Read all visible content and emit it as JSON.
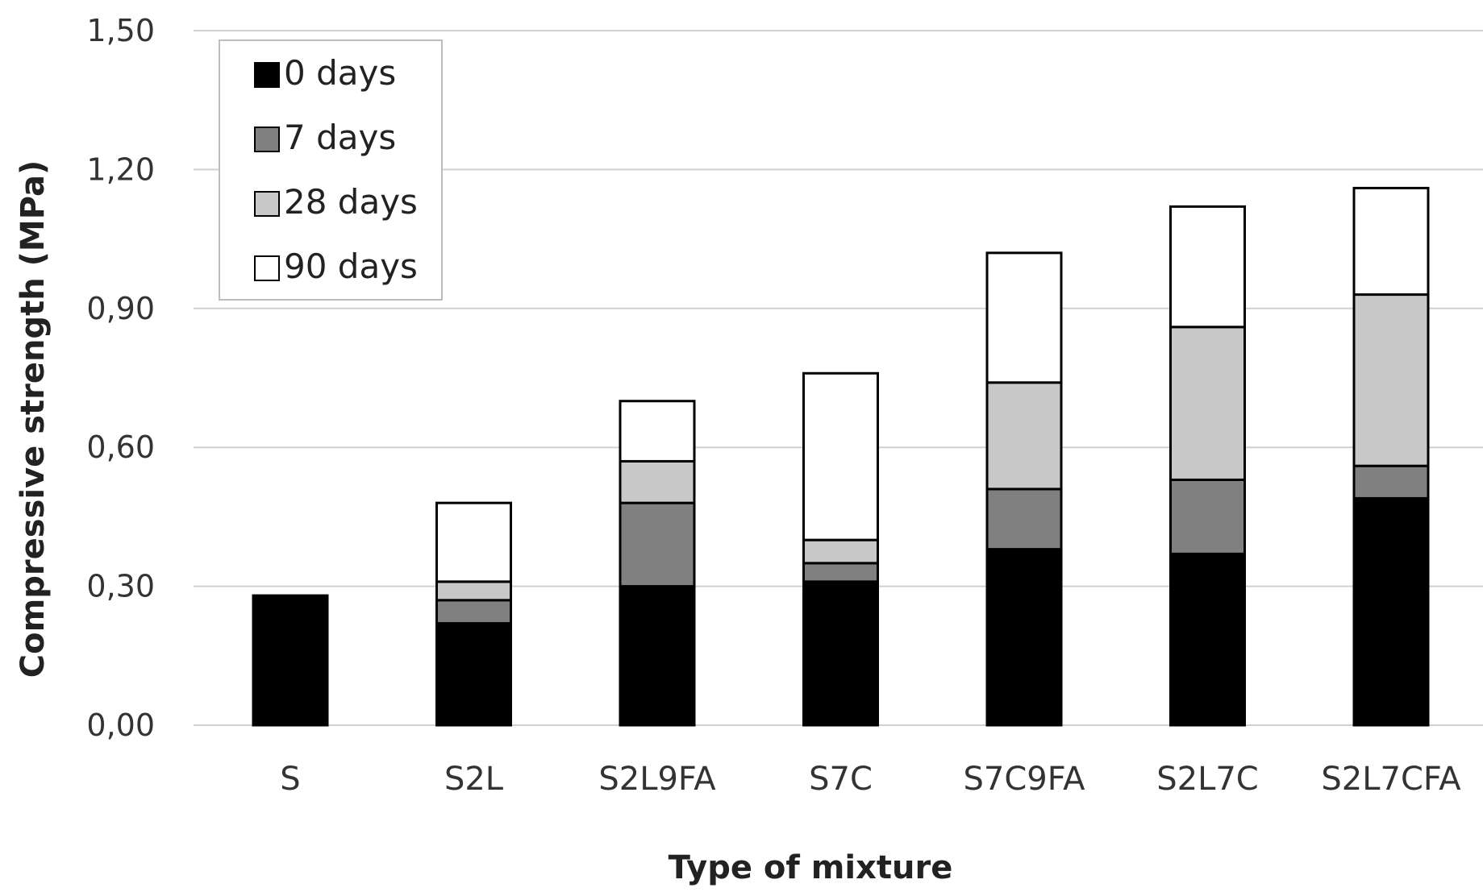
{
  "chart_data": {
    "type": "bar",
    "stacked": true,
    "xlabel": "Type of mixture",
    "ylabel": "Compressive strength (MPa)",
    "ylim": [
      0,
      1.5
    ],
    "yticks": [
      "0,00",
      "0,30",
      "0,60",
      "0,90",
      "1,20",
      "1,50"
    ],
    "ytick_values": [
      0,
      0.3,
      0.6,
      0.9,
      1.2,
      1.5
    ],
    "grid": true,
    "legend_position": "top-left",
    "categories": [
      "S",
      "S2L",
      "S2L9FA",
      "S7C",
      "S7C9FA",
      "S2L7C",
      "S2L7CFA"
    ],
    "series": [
      {
        "name": "0 days",
        "color": "#000000",
        "values": [
          0.28,
          0.22,
          0.3,
          0.31,
          0.38,
          0.37,
          0.49
        ]
      },
      {
        "name": "7 days",
        "color": "#808080",
        "values": [
          0,
          0.05,
          0.18,
          0.04,
          0.13,
          0.16,
          0.07
        ]
      },
      {
        "name": "28 days",
        "color": "#c8c8c8",
        "values": [
          0,
          0.04,
          0.09,
          0.05,
          0.23,
          0.33,
          0.37
        ]
      },
      {
        "name": "90 days",
        "color": "#ffffff",
        "values": [
          0,
          0.17,
          0.13,
          0.36,
          0.28,
          0.26,
          0.23
        ]
      }
    ]
  }
}
